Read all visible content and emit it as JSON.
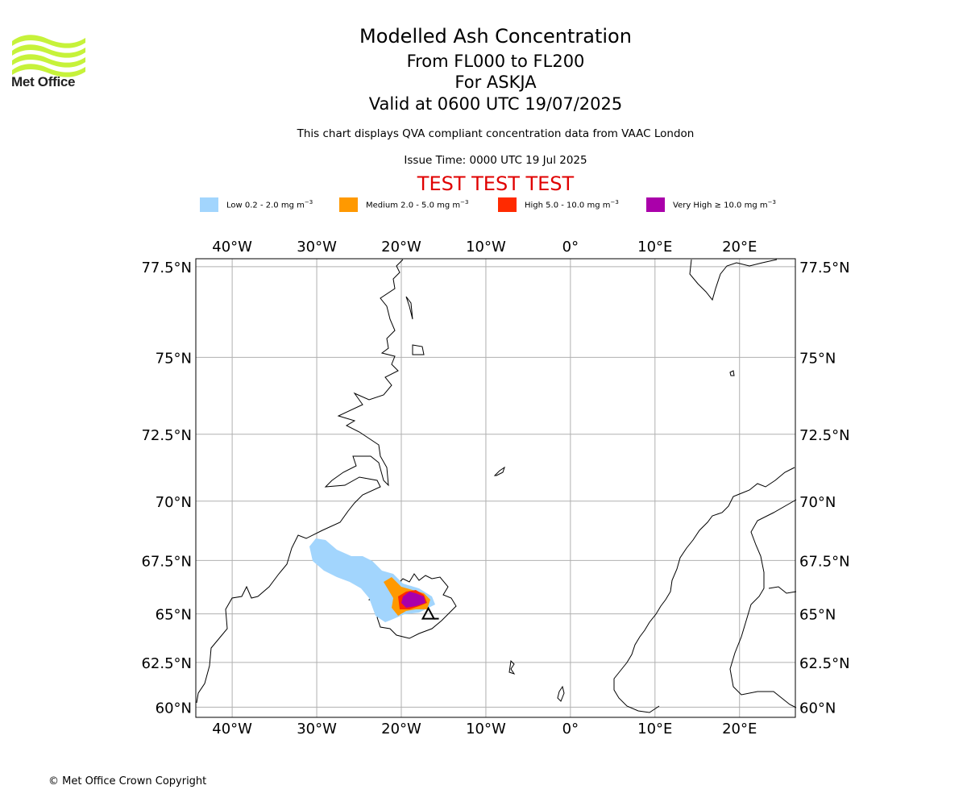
{
  "header": {
    "logo_text": "Met Office",
    "title": "Modelled Ash Concentration",
    "levels": "From FL000 to FL200",
    "volcano": "For ASKJA",
    "valid_time": "Valid at 0600 UTC 19/07/2025",
    "subtitle": "This chart displays QVA compliant concentration data from VAAC London",
    "issue_time": "Issue Time: 0000 UTC 19 Jul 2025",
    "test_banner": "TEST TEST TEST"
  },
  "legend": [
    {
      "label": "Low 0.2 - 2.0 mg m",
      "unit_exp": "−3",
      "color": "#a2d5fd"
    },
    {
      "label": "Medium 2.0 - 5.0 mg m",
      "unit_exp": "−3",
      "color": "#ff9900"
    },
    {
      "label": "High 5.0 - 10.0 mg m",
      "unit_exp": "−3",
      "color": "#ff2a00"
    },
    {
      "label": "Very High  ≥  10.0 mg m",
      "unit_exp": "−3",
      "color": "#aa00aa"
    }
  ],
  "map": {
    "lon_range": [
      -44.3,
      26.6
    ],
    "lat_range": [
      59.4,
      77.7
    ],
    "lon_ticks": [
      {
        "lon": -40,
        "label": "40°W"
      },
      {
        "lon": -30,
        "label": "30°W"
      },
      {
        "lon": -20,
        "label": "20°W"
      },
      {
        "lon": -10,
        "label": "10°W"
      },
      {
        "lon": 0,
        "label": "0°"
      },
      {
        "lon": 10,
        "label": "10°E"
      },
      {
        "lon": 20,
        "label": "20°E"
      }
    ],
    "lat_ticks": [
      {
        "lat": 77.5,
        "label": "77.5°N"
      },
      {
        "lat": 75,
        "label": "75°N"
      },
      {
        "lat": 72.5,
        "label": "72.5°N"
      },
      {
        "lat": 70,
        "label": "70°N"
      },
      {
        "lat": 67.5,
        "label": "67.5°N"
      },
      {
        "lat": 65,
        "label": "65°N"
      },
      {
        "lat": 62.5,
        "label": "62.5°N"
      },
      {
        "lat": 60,
        "label": "60°N"
      }
    ],
    "gridlines": true,
    "volcano_marker": {
      "name": "ASKJA",
      "lon": -16.8,
      "lat": 65.0
    }
  },
  "footer": {
    "copyright": "© Met Office Crown Copyright"
  }
}
